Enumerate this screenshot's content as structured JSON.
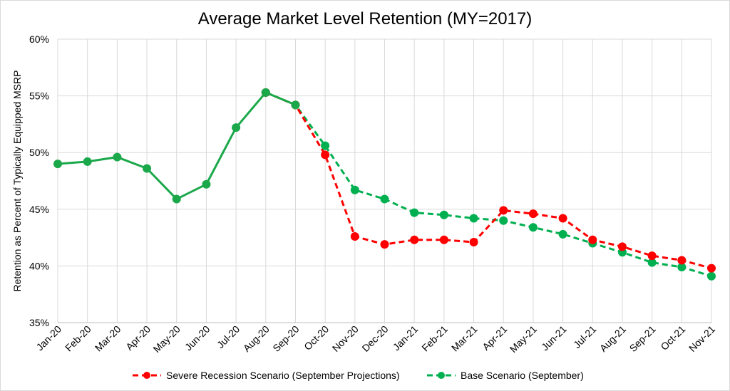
{
  "chart_data": {
    "type": "line",
    "title": "Average Market Level Retention (MY=2017)",
    "xlabel": "",
    "ylabel": "Retention as Percent of Typically Equipped MSRP",
    "categories": [
      "Jan-20",
      "Feb-20",
      "Mar-20",
      "Apr-20",
      "May-20",
      "Jun-20",
      "Jul-20",
      "Aug-20",
      "Sep-20",
      "Oct-20",
      "Nov-20",
      "Dec-20",
      "Jan-21",
      "Feb-21",
      "Mar-21",
      "Apr-21",
      "May-21",
      "Jun-21",
      "Jul-21",
      "Aug-21",
      "Sep-21",
      "Oct-21",
      "Nov-21"
    ],
    "ylim": [
      35,
      60
    ],
    "yticks": [
      35,
      40,
      45,
      50,
      55,
      60
    ],
    "ytick_labels": [
      "35%",
      "40%",
      "45%",
      "50%",
      "55%",
      "60%"
    ],
    "grid": true,
    "legend_position": "bottom",
    "historical": {
      "values": [
        49.0,
        49.2,
        49.6,
        48.6,
        45.9,
        47.2,
        52.2,
        55.3,
        54.2
      ],
      "color": "#1aa84a",
      "style": "solid"
    },
    "series": [
      {
        "name": "Severe Recession Scenario (September Projections)",
        "color": "#ff0000",
        "style": "dashed",
        "values": [
          null,
          null,
          null,
          null,
          null,
          null,
          null,
          55.3,
          54.2,
          49.8,
          42.6,
          41.9,
          42.3,
          42.3,
          42.1,
          44.9,
          44.6,
          44.2,
          42.3,
          41.7,
          40.9,
          40.5,
          39.8
        ]
      },
      {
        "name": "Base Scenario (September)",
        "color": "#00b050",
        "style": "dashed",
        "values": [
          null,
          null,
          null,
          null,
          null,
          null,
          null,
          55.3,
          54.2,
          50.6,
          46.7,
          45.9,
          44.7,
          44.5,
          44.2,
          44.0,
          43.4,
          42.8,
          42.0,
          41.2,
          40.3,
          39.9,
          39.1
        ]
      }
    ]
  }
}
